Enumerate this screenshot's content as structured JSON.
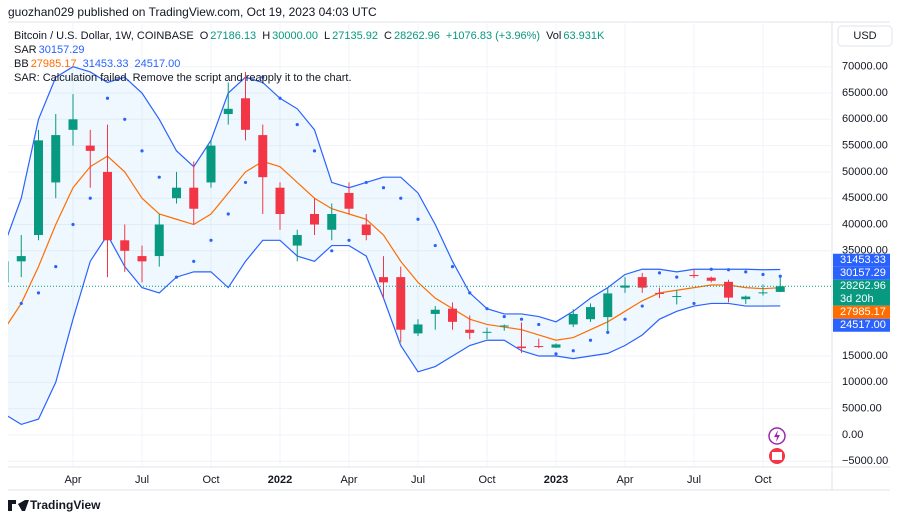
{
  "header": {
    "byline": "guozhan029 published on TradingView.com, Oct 19, 2023 04:03 UTC",
    "currency": "USD",
    "brand": "TradingView"
  },
  "legend": {
    "symbol": "Bitcoin / U.S. Dollar, 1W, COINBASE",
    "o_key": "O",
    "open": "27186.13",
    "h_key": "H",
    "high": "30000.00",
    "l_key": "L",
    "low": "27135.92",
    "c_key": "C",
    "close": "28262.96",
    "change": "+1076.83 (+3.96%)",
    "vol_key": "Vol",
    "volume": "63.931K",
    "sar_key": "SAR",
    "sar": "30157.29",
    "bb_key": "BB",
    "bb_middle": "27985.17",
    "bb_upper": "31453.33",
    "bb_lower": "24517.00",
    "error": "SAR: Calculation failed. Remove the script and reapply it to the chart.",
    "countdown": "3d 20h"
  },
  "chart_data": {
    "type": "candlestick",
    "categories": [
      null,
      null,
      null,
      null,
      "Apr",
      null,
      null,
      null,
      "Jul",
      null,
      null,
      null,
      "Oct",
      null,
      null,
      null,
      "2022",
      null,
      null,
      null,
      "Apr",
      null,
      null,
      null,
      "Jul",
      null,
      null,
      null,
      "Oct",
      null,
      null,
      null,
      "2023",
      null,
      null,
      null,
      "Apr",
      null,
      null,
      null,
      "Jul",
      null,
      null,
      null,
      "Oct",
      null
    ],
    "open": [
      29000,
      33000,
      38000,
      48000,
      58000,
      55000,
      50000,
      37000,
      34000,
      34000,
      45000,
      47000,
      48000,
      61000,
      64000,
      57000,
      47000,
      36000,
      42000,
      39000,
      46000,
      40000,
      30000,
      30000,
      19300,
      23000,
      24000,
      20000,
      19500,
      20600,
      16800,
      16900,
      16600,
      21000,
      22000,
      22400,
      28000,
      30000,
      27000,
      26300,
      30400,
      29900,
      29100,
      25800,
      27000,
      27186.13
    ],
    "high": [
      41000,
      38000,
      58000,
      61000,
      64800,
      58000,
      59000,
      40000,
      36000,
      42000,
      50000,
      52000,
      56000,
      67000,
      69000,
      59000,
      48000,
      39000,
      45000,
      44000,
      48000,
      42000,
      34000,
      32000,
      22000,
      24500,
      25200,
      22700,
      20400,
      21000,
      21400,
      18300,
      17400,
      23900,
      25000,
      28000,
      30000,
      30800,
      28000,
      27500,
      31500,
      30100,
      29500,
      26500,
      28600,
      30000
    ],
    "low": [
      28000,
      30000,
      37000,
      45000,
      55000,
      47000,
      30000,
      31000,
      29000,
      32000,
      44000,
      40000,
      47000,
      59000,
      56000,
      42000,
      39000,
      33000,
      38000,
      37000,
      42000,
      37000,
      26000,
      17600,
      18800,
      20000,
      20000,
      18200,
      18200,
      19800,
      15600,
      16500,
      16500,
      20500,
      21500,
      19600,
      27000,
      27000,
      26000,
      24800,
      29800,
      29000,
      25200,
      24900,
      26500,
      27135.92
    ],
    "close": [
      33000,
      34000,
      56000,
      57000,
      60000,
      54000,
      37000,
      35000,
      33000,
      40000,
      47000,
      43000,
      55000,
      62000,
      58000,
      49000,
      42000,
      38000,
      40000,
      42000,
      43000,
      38000,
      29000,
      20000,
      21000,
      23800,
      21500,
      19400,
      19600,
      20800,
      16500,
      16800,
      17200,
      23000,
      24300,
      26900,
      28400,
      28000,
      26800,
      26400,
      30200,
      29300,
      26100,
      26300,
      27100,
      28262.96
    ],
    "bb": {
      "upper": [
        36000,
        45000,
        60000,
        68000,
        70000,
        69000,
        67000,
        68000,
        65000,
        60000,
        54000,
        51000,
        56000,
        65000,
        68000,
        67000,
        64000,
        62000,
        58000,
        48000,
        47000,
        48000,
        49000,
        49000,
        46000,
        40000,
        33000,
        27000,
        24000,
        23000,
        23000,
        22500,
        21500,
        23500,
        26000,
        28000,
        30500,
        31500,
        31500,
        31000,
        31500,
        31500,
        31500,
        31500,
        31400,
        31453.33
      ],
      "middle": [
        20000,
        25000,
        32000,
        40000,
        47000,
        51000,
        53000,
        50000,
        45000,
        42000,
        41000,
        40000,
        42000,
        46000,
        50000,
        52000,
        51000,
        48000,
        45000,
        43000,
        42000,
        41000,
        38000,
        33000,
        29000,
        26000,
        24000,
        22000,
        21000,
        20500,
        20000,
        19000,
        18000,
        18500,
        20000,
        21500,
        23500,
        25500,
        27000,
        27500,
        28000,
        28500,
        28500,
        28000,
        27800,
        27985.17
      ],
      "lower": [
        4000,
        2000,
        3000,
        10000,
        22000,
        33000,
        38000,
        32000,
        28000,
        27000,
        30000,
        31000,
        31000,
        28000,
        33000,
        37000,
        37000,
        34000,
        33000,
        36000,
        36000,
        34000,
        26000,
        17000,
        12000,
        13000,
        15000,
        17000,
        18000,
        18000,
        16000,
        15000,
        15000,
        14500,
        15000,
        15500,
        17000,
        19000,
        22000,
        23500,
        24500,
        25000,
        25000,
        24500,
        24500,
        24517
      ]
    },
    "sar": [
      43000,
      25000,
      27000,
      32000,
      40000,
      45000,
      64000,
      60000,
      54000,
      49000,
      30000,
      33000,
      37000,
      42000,
      48000,
      68000,
      64000,
      59000,
      54000,
      35000,
      37000,
      48000,
      47000,
      45000,
      41000,
      36000,
      32000,
      27000,
      24000,
      22500,
      22000,
      21000,
      15400,
      16000,
      18000,
      19500,
      22000,
      24500,
      30800,
      30000,
      25000,
      31500,
      31400,
      31000,
      30500,
      30157.29
    ],
    "up_color": "#089981",
    "down_color": "#f23645",
    "bb_color": "#2962ff",
    "basis_color": "#ff6d00",
    "sar_color": "#2962ff",
    "ylim": [
      -6100,
      78500
    ],
    "yticks": [
      {
        "value": 70000,
        "label": "70000.00"
      },
      {
        "value": 65000,
        "label": "65000.00"
      },
      {
        "value": 60000,
        "label": "60000.00"
      },
      {
        "value": 55000,
        "label": "55000.00"
      },
      {
        "value": 50000,
        "label": "50000.00"
      },
      {
        "value": 45000,
        "label": "45000.00"
      },
      {
        "value": 40000,
        "label": "40000.00"
      },
      {
        "value": 35000,
        "label": "35000.00"
      },
      {
        "value": 15000,
        "label": "15000.00"
      },
      {
        "value": 10000,
        "label": "10000.00"
      },
      {
        "value": 5000,
        "label": "5000.00"
      },
      {
        "value": 0,
        "label": "0.00"
      },
      {
        "value": -5000,
        "label": "−5000.00"
      }
    ],
    "grid": true
  }
}
